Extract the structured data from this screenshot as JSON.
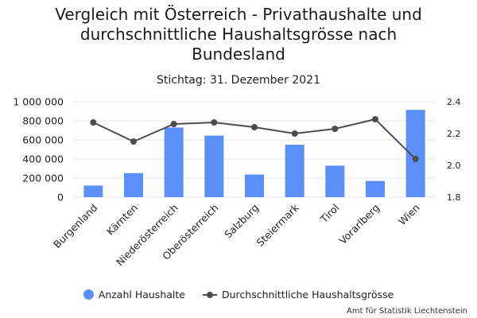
{
  "chart_data": {
    "type": "bar",
    "title_lines": [
      "Vergleich mit Österreich - Privathaushalte und",
      "durchschnittliche Haushaltsgrösse nach",
      "Bundesland"
    ],
    "subtitle": "Stichtag: 31. Dezember 2021",
    "categories": [
      "Burgenland",
      "Kärnten",
      "Niederösterreich",
      "Oberösterreich",
      "Salzburg",
      "Steiermark",
      "Tirol",
      "Vorarlberg",
      "Wien"
    ],
    "series": [
      {
        "name": "Anzahl Haushalte",
        "type": "bar",
        "axis": "left",
        "color": "#5b8ff9",
        "values": [
          122000,
          252000,
          730000,
          645000,
          237000,
          550000,
          330000,
          170000,
          915000
        ]
      },
      {
        "name": "Durchschnittliche Haushaltsgrösse",
        "type": "line",
        "axis": "right",
        "color": "#4d4d4d",
        "values": [
          2.27,
          2.15,
          2.26,
          2.27,
          2.24,
          2.2,
          2.23,
          2.29,
          2.04
        ]
      }
    ],
    "y_left": {
      "min": 0,
      "max": 1000000,
      "ticks": [
        0,
        200000,
        400000,
        600000,
        800000,
        1000000
      ],
      "tick_labels": [
        "0",
        "200 000",
        "400 000",
        "600 000",
        "800 000",
        "1 000 000"
      ]
    },
    "y_right": {
      "min": 1.8,
      "max": 2.4,
      "ticks": [
        1.8,
        2.0,
        2.2,
        2.4
      ],
      "tick_labels": [
        "1.8",
        "2.0",
        "2.2",
        "2.4"
      ]
    },
    "grid": true,
    "legend_position": "bottom",
    "source": "Amt für Statistik Liechtenstein"
  }
}
